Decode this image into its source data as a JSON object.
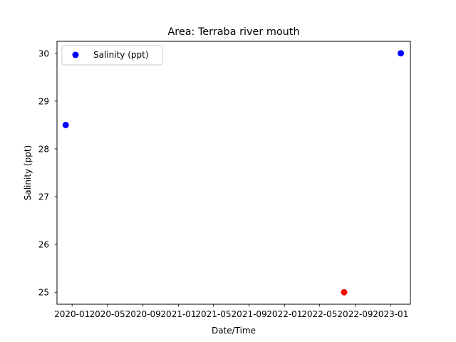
{
  "chart_data": {
    "type": "scatter",
    "title": "Area: Terraba river mouth",
    "xlabel": "Date/Time",
    "ylabel": "Salinity (ppt)",
    "xlim": [
      "2019-11-10",
      "2023-03-10"
    ],
    "ylim": [
      24.75,
      30.25
    ],
    "x_ticks": [
      {
        "date": "2020-01-01",
        "label": "2020-01"
      },
      {
        "date": "2020-05-01",
        "label": "2020-05"
      },
      {
        "date": "2020-09-01",
        "label": "2020-09"
      },
      {
        "date": "2021-01-01",
        "label": "2021-01"
      },
      {
        "date": "2021-05-01",
        "label": "2021-05"
      },
      {
        "date": "2021-09-01",
        "label": "2021-09"
      },
      {
        "date": "2022-01-01",
        "label": "2022-01"
      },
      {
        "date": "2022-05-01",
        "label": "2022-05"
      },
      {
        "date": "2022-09-01",
        "label": "2022-09"
      },
      {
        "date": "2023-01-01",
        "label": "2023-01"
      }
    ],
    "y_ticks": [
      25,
      26,
      27,
      28,
      29,
      30
    ],
    "grid": false,
    "legend": {
      "position": "top-left",
      "entries": [
        {
          "label": "Salinity (ppt)",
          "color": "#0000ff"
        }
      ]
    },
    "series": [
      {
        "name": "Salinity (ppt)",
        "points": [
          {
            "date": "2019-12-10",
            "value": 28.5,
            "color": "#0000ff"
          },
          {
            "date": "2022-07-25",
            "value": 25.0,
            "color": "#ff0000"
          },
          {
            "date": "2023-02-05",
            "value": 30.0,
            "color": "#0000ff"
          }
        ]
      }
    ]
  }
}
